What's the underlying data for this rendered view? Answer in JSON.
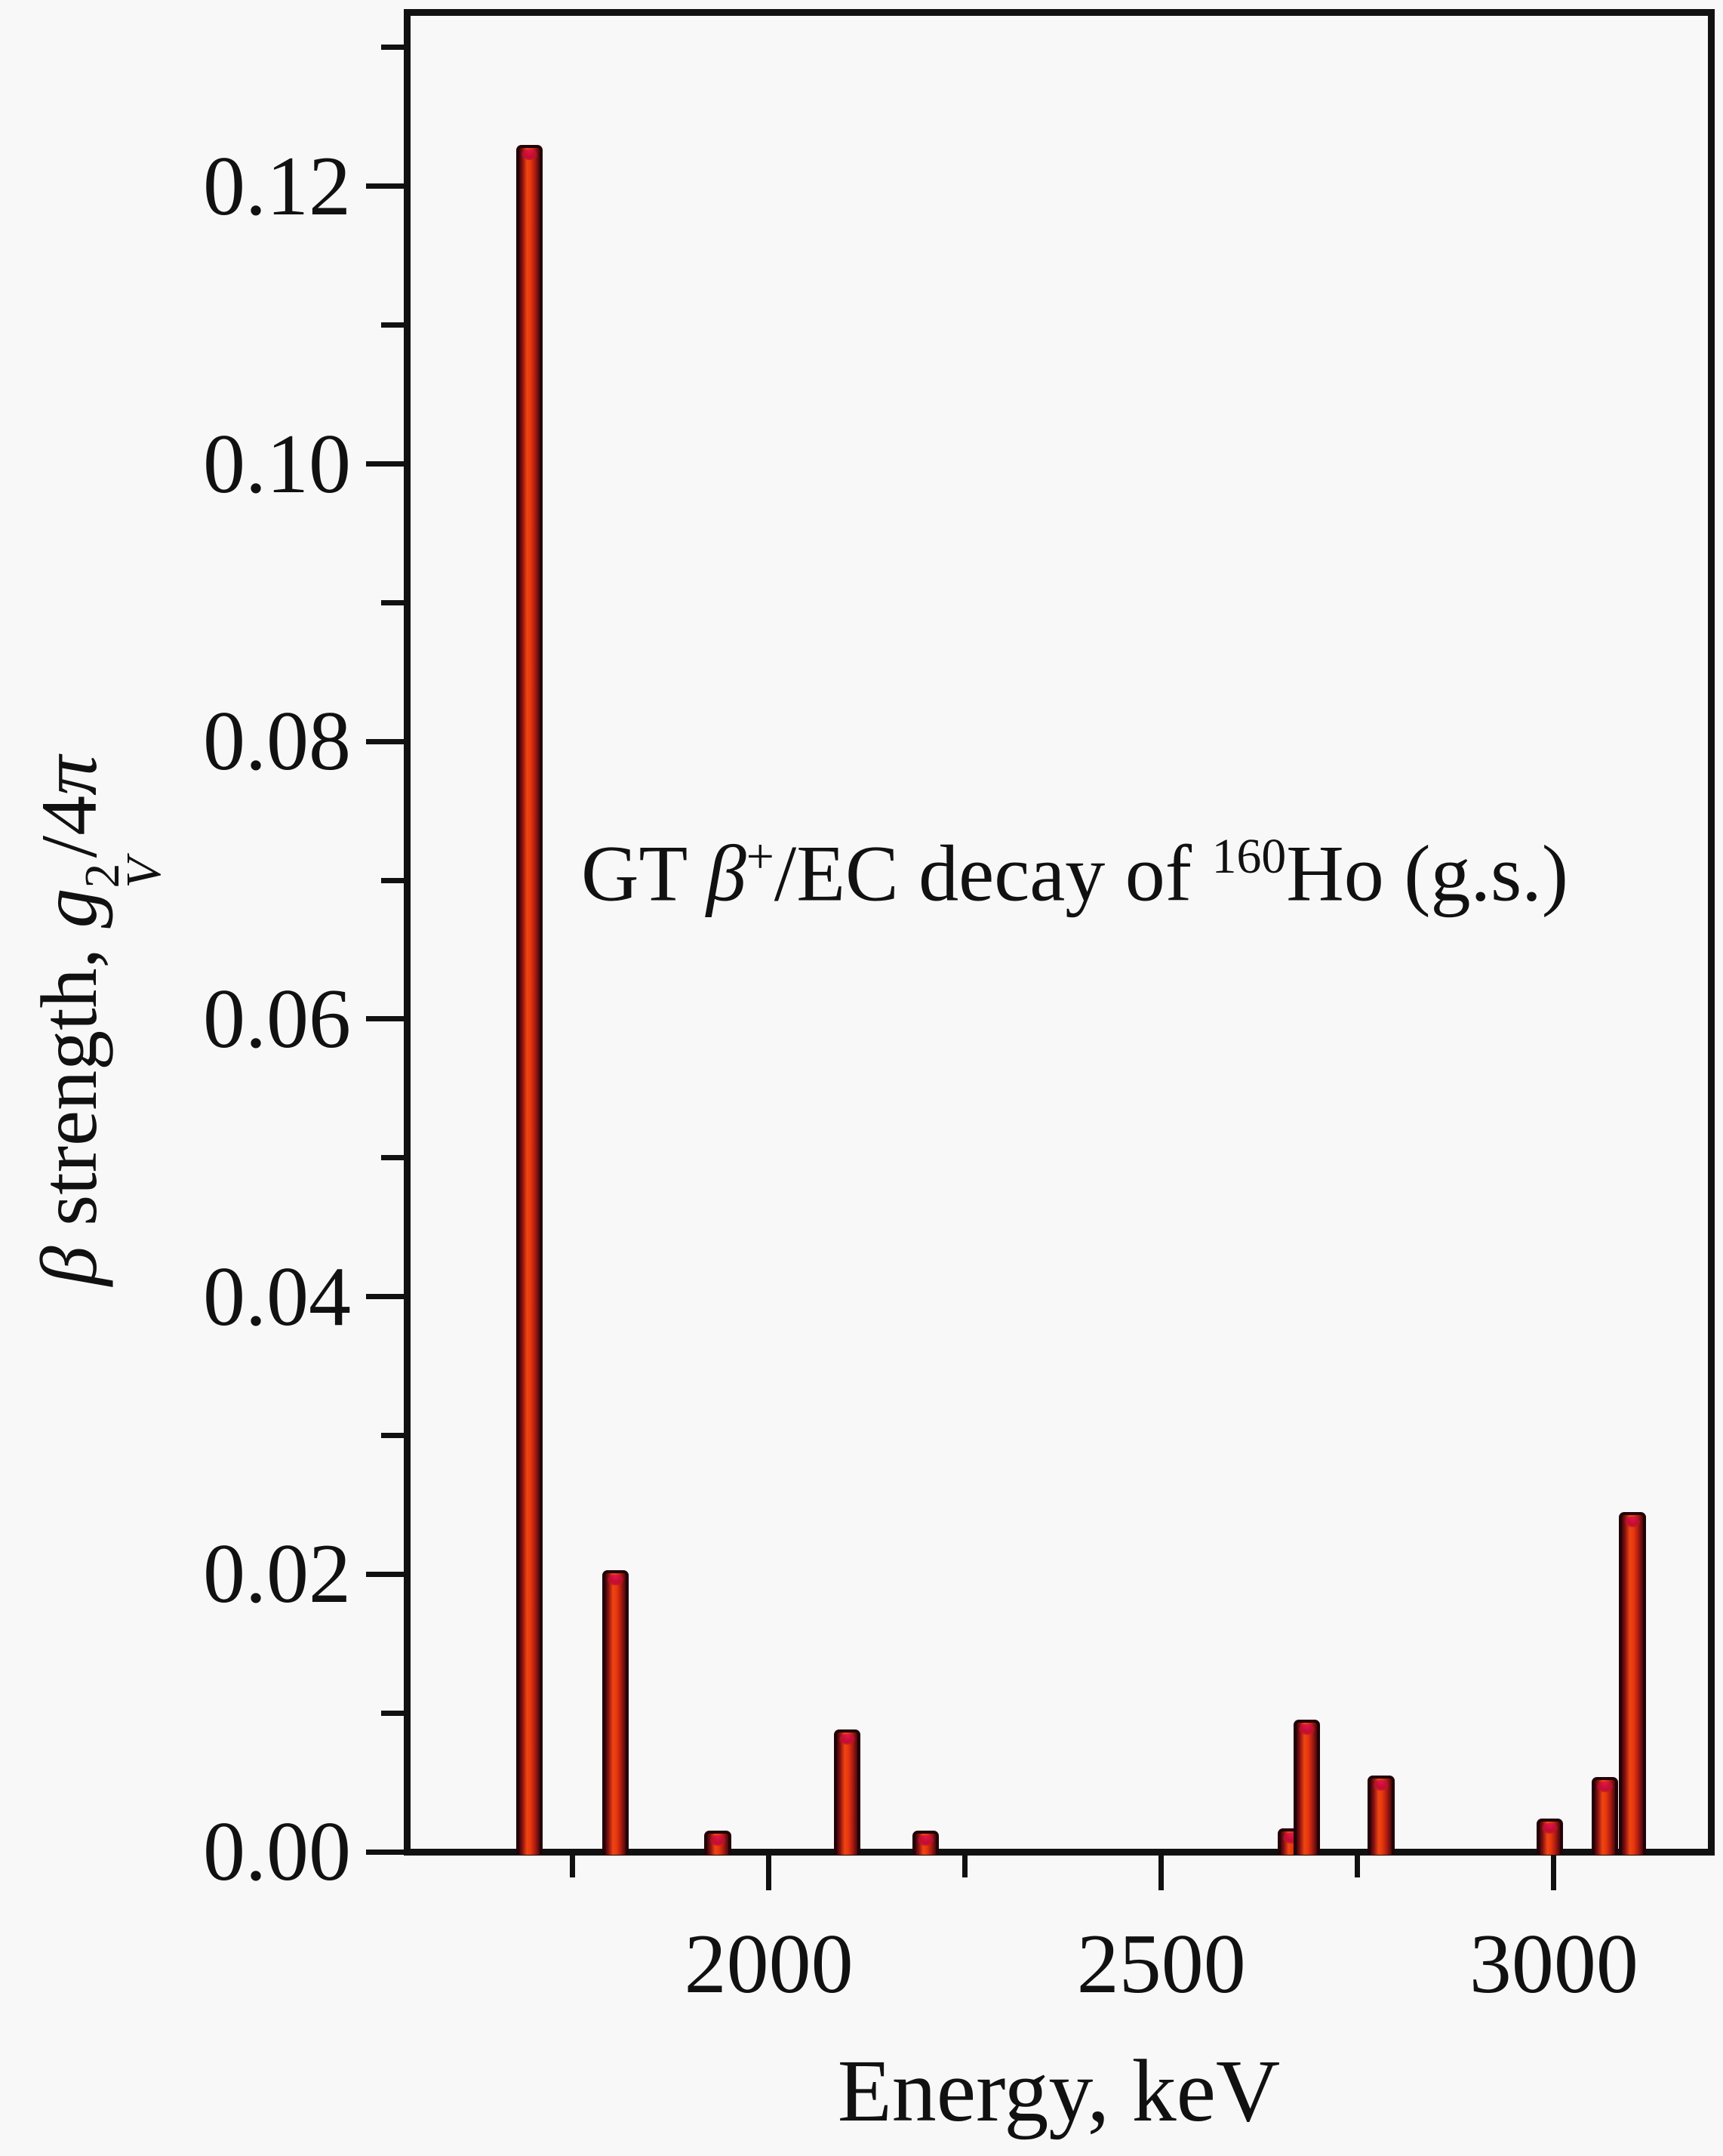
{
  "page": {
    "background": "#f8f8f8",
    "text_color": "#111111"
  },
  "title": {
    "p1": "GT ",
    "beta": "β",
    "sup1": "+",
    "p2": "/EC decay of ",
    "sup2": "160",
    "p3": "Ho (g.s.)"
  },
  "axes": {
    "xlabel": "Energy, keV",
    "ylabel": {
      "beta": "β",
      "p1": " strength, ",
      "g": "g",
      "sup": "2",
      "sub": "V",
      "p2": "/4",
      "pi": "π"
    }
  },
  "chart_data": {
    "type": "bar",
    "title": "GT β+/EC decay of 160Ho (g.s.)",
    "xlabel": "Energy, keV",
    "ylabel": "β strength, g_V^2/4π",
    "xlim": [
      1540,
      3200
    ],
    "ylim": [
      0,
      0.1325
    ],
    "grid": "off",
    "legend": "none",
    "bar_width_kev": 34,
    "x_major_ticks": [
      {
        "value": 2000,
        "label": "2000"
      },
      {
        "value": 2500,
        "label": "2500"
      },
      {
        "value": 3000,
        "label": "3000"
      }
    ],
    "x_minor_ticks": [
      1750,
      2250,
      2750
    ],
    "y_major_ticks": [
      {
        "value": 0.0,
        "label": "0.00"
      },
      {
        "value": 0.02,
        "label": "0.02"
      },
      {
        "value": 0.04,
        "label": "0.04"
      },
      {
        "value": 0.06,
        "label": "0.06"
      },
      {
        "value": 0.08,
        "label": "0.08"
      },
      {
        "value": 0.1,
        "label": "0.10"
      },
      {
        "value": 0.12,
        "label": "0.12"
      }
    ],
    "y_minor_ticks": [
      0.01,
      0.03,
      0.05,
      0.07,
      0.09,
      0.11,
      0.13
    ],
    "bars": [
      {
        "energy_kev": 1695,
        "strength": 0.123
      },
      {
        "energy_kev": 1805,
        "strength": 0.0203
      },
      {
        "energy_kev": 1935,
        "strength": 0.0015
      },
      {
        "energy_kev": 2100,
        "strength": 0.0088
      },
      {
        "energy_kev": 2200,
        "strength": 0.0015
      },
      {
        "energy_kev": 2665,
        "strength": 0.0017
      },
      {
        "energy_kev": 2685,
        "strength": 0.0095
      },
      {
        "energy_kev": 2780,
        "strength": 0.0055
      },
      {
        "energy_kev": 2995,
        "strength": 0.0024
      },
      {
        "energy_kev": 3065,
        "strength": 0.0054
      },
      {
        "energy_kev": 3100,
        "strength": 0.0245
      }
    ],
    "colors": {
      "bar_core": "#ef4512",
      "bar_mid": "#e8380e",
      "bar_edge_dark": "#6b0d18",
      "bar_outline": "#230308",
      "bar_cap": "#e8174a",
      "axis": "#111111",
      "background": "#f8f8f8"
    }
  }
}
